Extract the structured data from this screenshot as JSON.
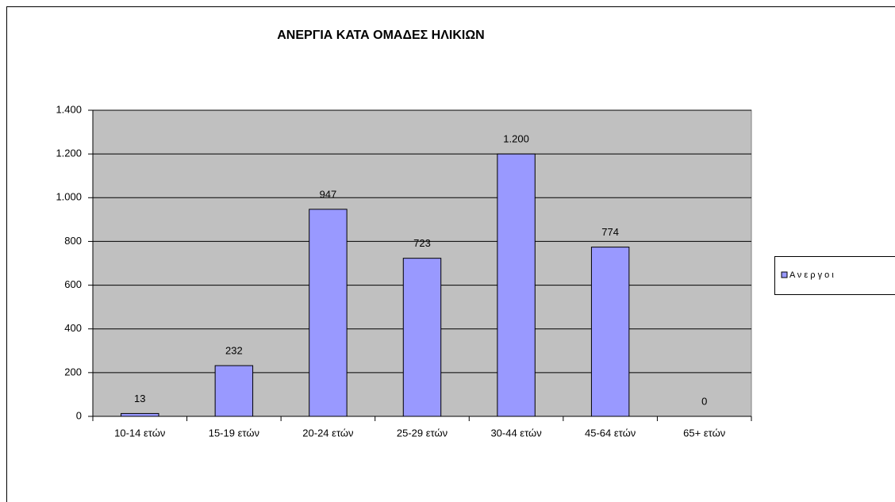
{
  "chart_data": {
    "type": "bar",
    "title": "ΑΝΕΡΓΙΑ ΚΑΤΑ ΟΜΑΔΕΣ ΗΛΙΚΙΩΝ",
    "categories": [
      "10-14 ετών",
      "15-19 ετών",
      "20-24 ετών",
      "25-29 ετών",
      "30-44 ετών",
      "45-64 ετών",
      "65+ ετών"
    ],
    "series": [
      {
        "name": "Α ν ε ρ γ ο ι",
        "color": "#9999ff",
        "values": [
          13,
          232,
          947,
          723,
          1200,
          774,
          0
        ],
        "value_labels": [
          "13",
          "232",
          "947",
          "723",
          "1.200",
          "774",
          "0"
        ]
      }
    ],
    "ylim": [
      0,
      1400
    ],
    "yticks": [
      0,
      200,
      400,
      600,
      800,
      {
        "value": 1000,
        "label": "1.000"
      },
      {
        "value": 1200,
        "label": "1.200"
      },
      {
        "value": 1400,
        "label": "1.400"
      }
    ],
    "grid": true,
    "plot_background": "#c0c0c0",
    "legend": "right"
  }
}
